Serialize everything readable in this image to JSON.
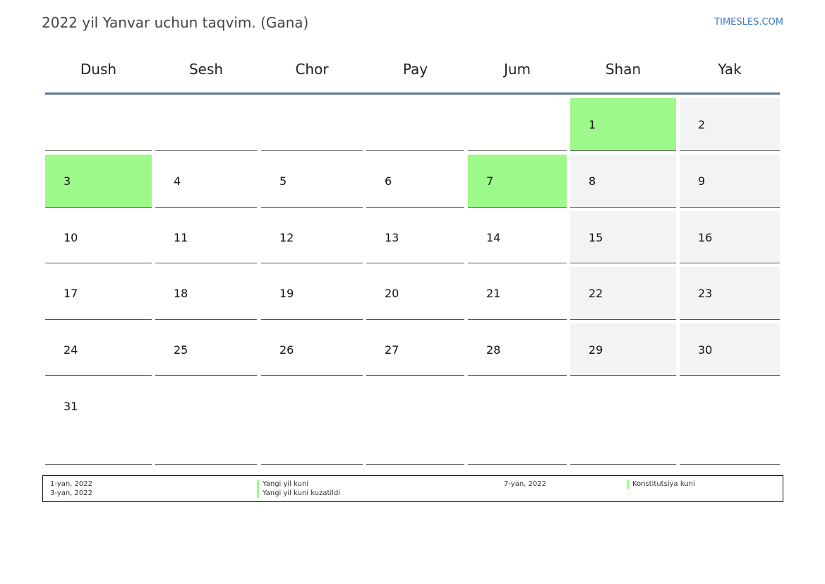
{
  "title": "2022 yil Yanvar uchun taqvim. (Gana)",
  "brand": "TIMESLES.COM",
  "colors": {
    "holiday": "#9dfa8a",
    "weekend": "#f3f3f3",
    "header_rule": "#5d7593"
  },
  "weekdays": [
    "Dush",
    "Sesh",
    "Chor",
    "Pay",
    "Jum",
    "Shan",
    "Yak"
  ],
  "weeks": [
    [
      "",
      "",
      "",
      "",
      "",
      "1",
      "2"
    ],
    [
      "3",
      "4",
      "5",
      "6",
      "7",
      "8",
      "9"
    ],
    [
      "10",
      "11",
      "12",
      "13",
      "14",
      "15",
      "16"
    ],
    [
      "17",
      "18",
      "19",
      "20",
      "21",
      "22",
      "23"
    ],
    [
      "24",
      "25",
      "26",
      "27",
      "28",
      "29",
      "30"
    ],
    [
      "31",
      "",
      "",
      "",
      "",
      "",
      ""
    ]
  ],
  "holiday_days": [
    "1",
    "3",
    "7"
  ],
  "legend": {
    "col1": [
      "1-yan, 2022",
      "3-yan, 2022"
    ],
    "col2": [
      "Yangi yil kuni",
      "Yangi yil kuni kuzatildi"
    ],
    "col3": [
      "7-yan, 2022"
    ],
    "col4": [
      "Konstitutsiya kuni"
    ]
  }
}
